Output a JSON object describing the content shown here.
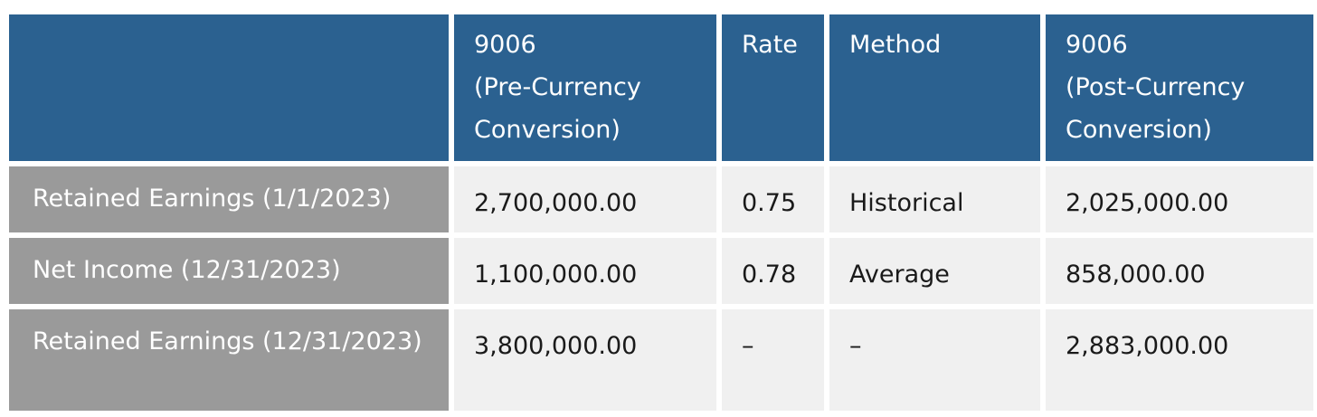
{
  "table": {
    "headers": [
      "",
      "9006\n(Pre-Currency\nConversion)",
      "Rate",
      "Method",
      "9006\n(Post-Currency\nConversion)"
    ],
    "rows": [
      {
        "label": "Retained Earnings (1/1/2023)",
        "pre": "2,700,000.00",
        "rate": "0.75",
        "method": "Historical",
        "post": "2,025,000.00"
      },
      {
        "label": "Net Income (12/31/2023)",
        "pre": "1,100,000.00",
        "rate": "0.78",
        "method": "Average",
        "post": "858,000.00"
      },
      {
        "label": "Retained Earnings (12/31/2023)",
        "pre": "3,800,000.00",
        "rate": "–",
        "method": "–",
        "post": "2,883,000.00"
      }
    ]
  },
  "colors": {
    "header_bg": "#2b6190",
    "row_label_bg": "#9a9a9a",
    "cell_bg": "#f0f0f0"
  }
}
